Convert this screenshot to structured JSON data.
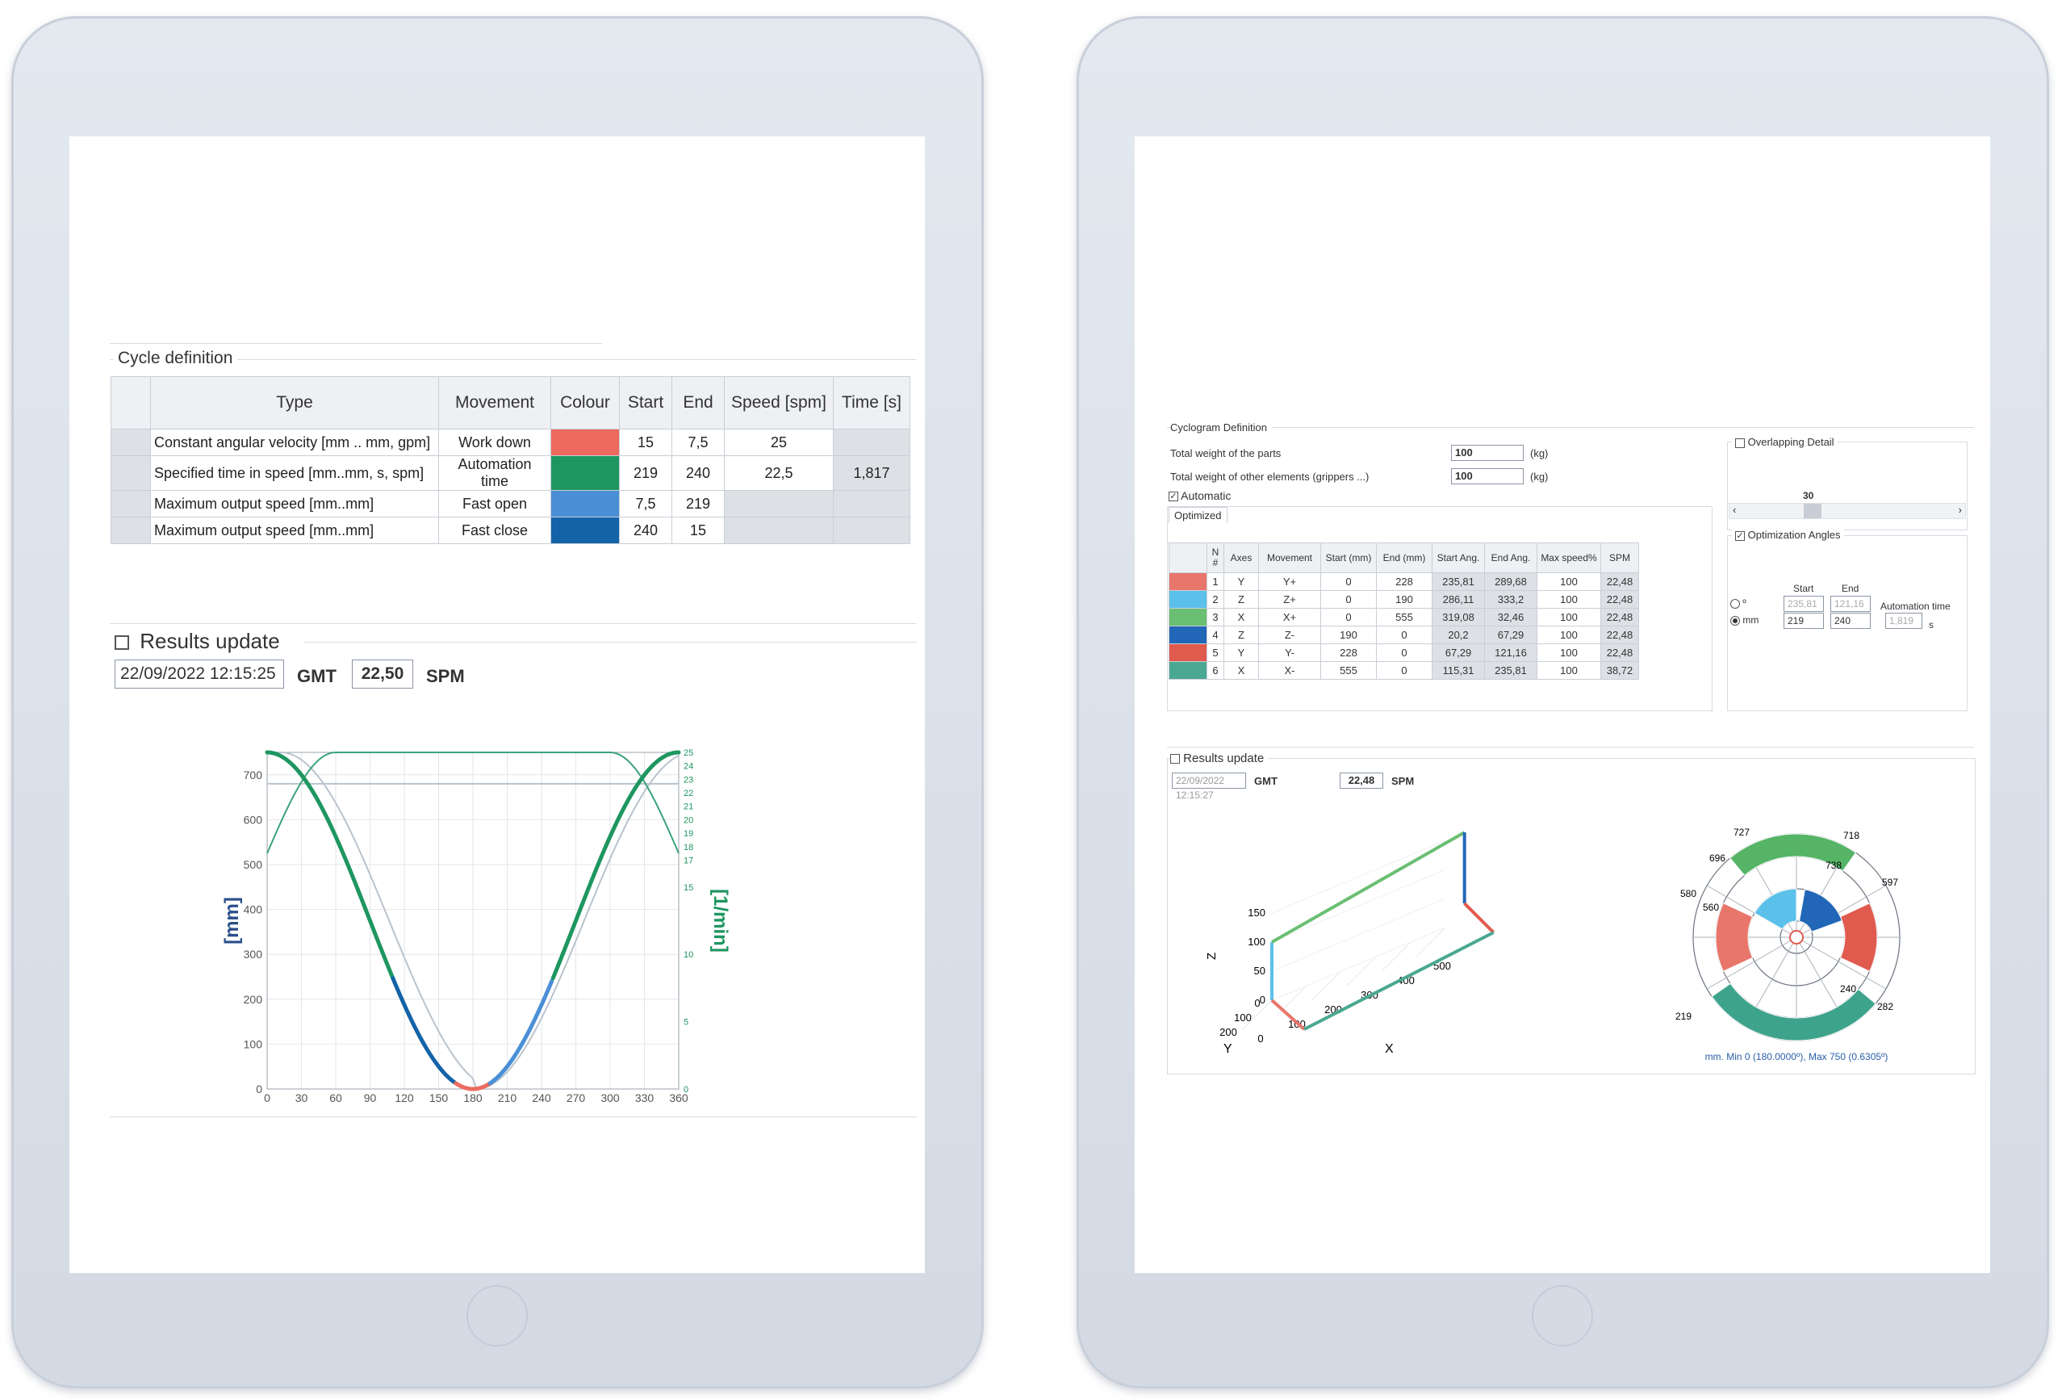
{
  "left_panel": {
    "cycle_definition_title": "Cycle definition",
    "table_headers": [
      "Type",
      "Movement",
      "Colour",
      "Start",
      "End",
      "Speed [spm]",
      "Time [s]"
    ],
    "rows": [
      {
        "type": "Constant angular velocity [mm .. mm, gpm]",
        "movement": "Work down",
        "colour": "#ec6a5e",
        "start": "15",
        "end": "7,5",
        "speed": "25",
        "time": ""
      },
      {
        "type": "Specified time in speed [mm..mm, s, spm]",
        "movement": "Automation time",
        "colour": "#1e9660",
        "start": "219",
        "end": "240",
        "speed": "22,5",
        "time": "1,817"
      },
      {
        "type": "Maximum output speed [mm..mm]",
        "movement": "Fast open",
        "colour": "#4a8fd6",
        "start": "7,5",
        "end": "219",
        "speed": "",
        "time": ""
      },
      {
        "type": "Maximum output speed [mm..mm]",
        "movement": "Fast close",
        "colour": "#1463a8",
        "start": "240",
        "end": "15",
        "speed": "",
        "time": ""
      }
    ],
    "results_update_label": "Results update",
    "timestamp": "22/09/2022 12:15:25",
    "tz": "GMT",
    "spm_value": "22,50",
    "spm_unit": "SPM"
  },
  "chart_data": {
    "type": "line",
    "xlabel": "[º]",
    "ylabel": "[mm]",
    "y2label": "[1/min]",
    "xlim": [
      0,
      360
    ],
    "ylim": [
      0,
      750
    ],
    "y2lim": [
      0,
      25
    ],
    "x_ticks": [
      "0",
      "30",
      "60",
      "90",
      "120",
      "150",
      "180",
      "210",
      "240",
      "270",
      "300",
      "330",
      "360"
    ],
    "y_ticks": [
      "0",
      "100",
      "200",
      "300",
      "400",
      "500",
      "600",
      "700"
    ],
    "y2_ticks": [
      "0",
      "5",
      "10",
      "15",
      "17",
      "18",
      "19",
      "20",
      "21",
      "22",
      "23",
      "24",
      "25"
    ],
    "grid": true,
    "series_shape": {
      "displacement_max": 750,
      "displacement_min": 0,
      "speed_min": 17.5,
      "speed_max": 25
    }
  },
  "right_panel": {
    "cyclogram_title": "Cyclogram Definition",
    "weight_parts_label": "Total weight of the parts",
    "weight_parts_value": "100",
    "weight_other_label": "Total weight of other elements (grippers ...)",
    "weight_other_value": "100",
    "kg_unit": "(kg)",
    "automatic_label": "Automatic",
    "optimized_tab": "Optimized",
    "overlapping_label": "Overlapping Detail",
    "slider_value": "30",
    "slider_left": "‹",
    "slider_right": "›",
    "opt_angles_label": "Optimization Angles",
    "start_label": "Start",
    "end_label": "End",
    "automation_time_label": "Automation time",
    "deg_unit": "º",
    "mm_unit": "mm",
    "deg_start": "235,81",
    "deg_end": "121,16",
    "mm_start": "219",
    "mm_end": "240",
    "automation_time_value": "1,819",
    "s_unit": "s",
    "opt_headers": [
      "N #",
      "Axes",
      "Movement",
      "Start (mm)",
      "End (mm)",
      "Start Ang.",
      "End Ang.",
      "Max speed%",
      "SPM"
    ],
    "opt_rows": [
      {
        "color": "#e8766b",
        "n": "1",
        "axes": "Y",
        "mov": "Y+",
        "start": "0",
        "end": "228",
        "sa": "235,81",
        "ea": "289,68",
        "max": "100",
        "spm": "22,48"
      },
      {
        "color": "#5bc0ea",
        "n": "2",
        "axes": "Z",
        "mov": "Z+",
        "start": "0",
        "end": "190",
        "sa": "286,11",
        "ea": "333,2",
        "max": "100",
        "spm": "22,48"
      },
      {
        "color": "#6bbf72",
        "n": "3",
        "axes": "X",
        "mov": "X+",
        "start": "0",
        "end": "555",
        "sa": "319,08",
        "ea": "32,46",
        "max": "100",
        "spm": "22,48"
      },
      {
        "color": "#2266b8",
        "n": "4",
        "axes": "Z",
        "mov": "Z-",
        "start": "190",
        "end": "0",
        "sa": "20,2",
        "ea": "67,29",
        "max": "100",
        "spm": "22,48"
      },
      {
        "color": "#e05a4e",
        "n": "5",
        "axes": "Y",
        "mov": "Y-",
        "start": "228",
        "end": "0",
        "sa": "67,29",
        "ea": "121,16",
        "max": "100",
        "spm": "22,48"
      },
      {
        "color": "#4aa892",
        "n": "6",
        "axes": "X",
        "mov": "X-",
        "start": "555",
        "end": "0",
        "sa": "115,31",
        "ea": "235,81",
        "max": "100",
        "spm": "38,72"
      }
    ],
    "results_update_label": "Results update",
    "timestamp": "22/09/2022 12:15:27",
    "tz": "GMT",
    "spm_value": "22,48",
    "spm_unit": "SPM",
    "plot3d": {
      "z_ticks": [
        "0",
        "50",
        "100",
        "150"
      ],
      "x_ticks": [
        "0",
        "100",
        "200",
        "300",
        "400",
        "500"
      ],
      "y_ticks": [
        "0",
        "100",
        "200"
      ],
      "xlabel": "X",
      "ylabel": "Y",
      "zlabel": "Z"
    },
    "polar": {
      "labels": [
        "727",
        "718",
        "738",
        "696",
        "597",
        "580",
        "560",
        "219",
        "240",
        "282"
      ],
      "caption": "mm. Min 0 (180.0000º), Max 750 (0.6305º)"
    }
  }
}
